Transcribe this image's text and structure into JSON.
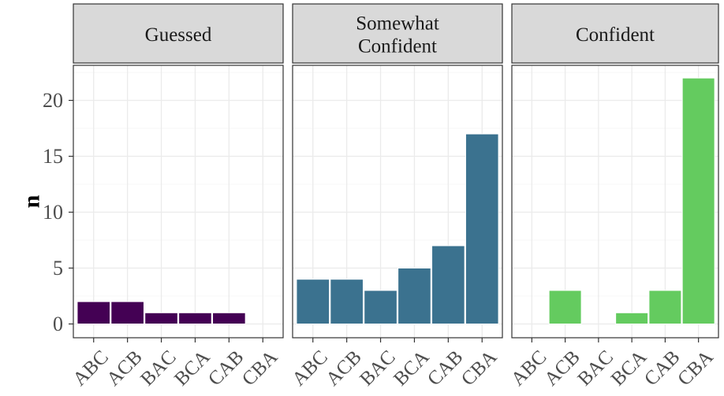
{
  "chart_data": {
    "type": "bar",
    "layout": "faceted",
    "ylabel": "n",
    "xlabel": "",
    "ylim": [
      0,
      23
    ],
    "yticks": [
      0,
      5,
      10,
      15,
      20
    ],
    "categories": [
      "ABC",
      "ACB",
      "BAC",
      "BCA",
      "CAB",
      "CBA"
    ],
    "facets": [
      {
        "label_lines": [
          "Guessed"
        ],
        "color": "#440154",
        "values": [
          2,
          2,
          1,
          1,
          1,
          0
        ]
      },
      {
        "label_lines": [
          "Somewhat",
          "Confident"
        ],
        "color": "#3b728f",
        "values": [
          4,
          4,
          3,
          5,
          7,
          17
        ]
      },
      {
        "label_lines": [
          "Confident"
        ],
        "color": "#64cb5f",
        "values": [
          0,
          3,
          0,
          1,
          3,
          22
        ]
      }
    ],
    "grid": true,
    "legend": "none"
  }
}
